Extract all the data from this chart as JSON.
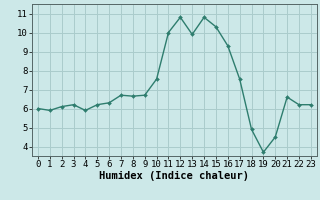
{
  "x": [
    0,
    1,
    2,
    3,
    4,
    5,
    6,
    7,
    8,
    9,
    10,
    11,
    12,
    13,
    14,
    15,
    16,
    17,
    18,
    19,
    20,
    21,
    22,
    23
  ],
  "y": [
    6.0,
    5.9,
    6.1,
    6.2,
    5.9,
    6.2,
    6.3,
    6.7,
    6.65,
    6.7,
    7.55,
    10.0,
    10.8,
    9.9,
    10.8,
    10.3,
    9.3,
    7.55,
    4.9,
    3.7,
    4.5,
    6.6,
    6.2,
    6.2
  ],
  "line_color": "#2e7d6e",
  "marker": "D",
  "marker_size": 2.0,
  "bg_color": "#cce8e8",
  "grid_color": "#aacccc",
  "xlabel": "Humidex (Indice chaleur)",
  "xlim": [
    -0.5,
    23.5
  ],
  "ylim": [
    3.5,
    11.5
  ],
  "yticks": [
    4,
    5,
    6,
    7,
    8,
    9,
    10,
    11
  ],
  "xticks": [
    0,
    1,
    2,
    3,
    4,
    5,
    6,
    7,
    8,
    9,
    10,
    11,
    12,
    13,
    14,
    15,
    16,
    17,
    18,
    19,
    20,
    21,
    22,
    23
  ],
  "linewidth": 1.0,
  "xlabel_fontsize": 7.5,
  "tick_fontsize": 6.5
}
